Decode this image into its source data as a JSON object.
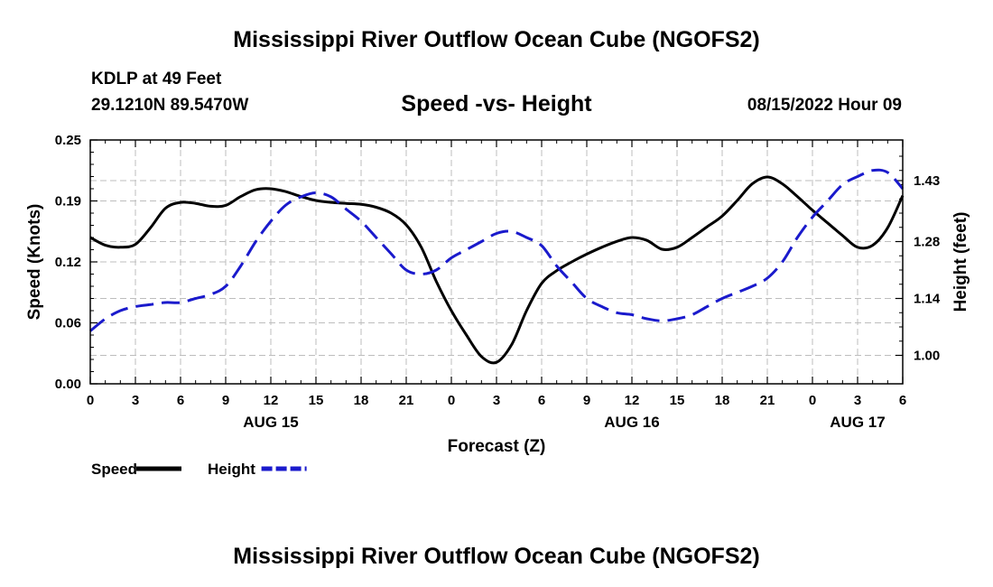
{
  "header": {
    "title": "Mississippi River Outflow Ocean Cube (NGOFS2)",
    "station": "KDLP at 49 Feet",
    "coordinates": "29.1210N  89.5470W",
    "subtitle": "Speed -vs- Height",
    "datetime": "08/15/2022 Hour 09"
  },
  "footer": {
    "title": "Mississippi River Outflow Ocean Cube (NGOFS2)"
  },
  "chart_data": {
    "type": "line",
    "title": "Speed -vs- Height",
    "xlabel": "Forecast (Z)",
    "ylabel": "Speed (Knots)",
    "y2label": "Height (feet)",
    "x_unit": "hours from 00Z Aug 15",
    "xlim": [
      0,
      54
    ],
    "ylim": [
      0,
      0.25
    ],
    "y2lim": [
      0.93,
      1.53
    ],
    "grid": true,
    "x_ticks": [
      {
        "x": 0,
        "label": "0"
      },
      {
        "x": 3,
        "label": "3"
      },
      {
        "x": 6,
        "label": "6"
      },
      {
        "x": 9,
        "label": "9"
      },
      {
        "x": 12,
        "label": "12"
      },
      {
        "x": 15,
        "label": "15"
      },
      {
        "x": 18,
        "label": "18"
      },
      {
        "x": 21,
        "label": "21"
      },
      {
        "x": 24,
        "label": "0"
      },
      {
        "x": 27,
        "label": "3"
      },
      {
        "x": 30,
        "label": "6"
      },
      {
        "x": 33,
        "label": "9"
      },
      {
        "x": 36,
        "label": "12"
      },
      {
        "x": 39,
        "label": "15"
      },
      {
        "x": 42,
        "label": "18"
      },
      {
        "x": 45,
        "label": "21"
      },
      {
        "x": 48,
        "label": "0"
      },
      {
        "x": 51,
        "label": "3"
      },
      {
        "x": 54,
        "label": "6"
      }
    ],
    "date_labels": [
      {
        "x": 12,
        "label": "AUG 15"
      },
      {
        "x": 36,
        "label": "AUG 16"
      },
      {
        "x": 51,
        "label": "AUG 17"
      }
    ],
    "y_ticks": [
      {
        "v": 0.0,
        "label": "0.00"
      },
      {
        "v": 0.0625,
        "label": "0.06"
      },
      {
        "v": 0.125,
        "label": "0.12"
      },
      {
        "v": 0.1875,
        "label": "0.19"
      },
      {
        "v": 0.25,
        "label": "0.25"
      }
    ],
    "y2_ticks": [
      {
        "v": 1.0,
        "label": "1.00"
      },
      {
        "v": 1.14,
        "label": "1.14"
      },
      {
        "v": 1.28,
        "label": "1.28"
      },
      {
        "v": 1.43,
        "label": "1.43"
      }
    ],
    "legend": [
      {
        "name": "Speed",
        "color": "#000000",
        "dash": false
      },
      {
        "name": "Height",
        "color": "#1a1acc",
        "dash": true
      }
    ],
    "series": [
      {
        "name": "Speed",
        "axis": "left",
        "color": "#000000",
        "dash": false,
        "points": [
          [
            0,
            0.15
          ],
          [
            1,
            0.142
          ],
          [
            2,
            0.14
          ],
          [
            3,
            0.143
          ],
          [
            4,
            0.16
          ],
          [
            5,
            0.18
          ],
          [
            6,
            0.186
          ],
          [
            7,
            0.185
          ],
          [
            8,
            0.182
          ],
          [
            9,
            0.183
          ],
          [
            10,
            0.192
          ],
          [
            11,
            0.199
          ],
          [
            12,
            0.2
          ],
          [
            13,
            0.197
          ],
          [
            14,
            0.192
          ],
          [
            15,
            0.188
          ],
          [
            16,
            0.186
          ],
          [
            17,
            0.185
          ],
          [
            18,
            0.184
          ],
          [
            19,
            0.181
          ],
          [
            20,
            0.175
          ],
          [
            21,
            0.163
          ],
          [
            22,
            0.14
          ],
          [
            23,
            0.105
          ],
          [
            24,
            0.075
          ],
          [
            25,
            0.05
          ],
          [
            26,
            0.028
          ],
          [
            27,
            0.022
          ],
          [
            28,
            0.04
          ],
          [
            29,
            0.075
          ],
          [
            30,
            0.103
          ],
          [
            31,
            0.116
          ],
          [
            32,
            0.125
          ],
          [
            33,
            0.133
          ],
          [
            34,
            0.14
          ],
          [
            35,
            0.146
          ],
          [
            36,
            0.15
          ],
          [
            37,
            0.147
          ],
          [
            38,
            0.138
          ],
          [
            39,
            0.14
          ],
          [
            40,
            0.15
          ],
          [
            41,
            0.161
          ],
          [
            42,
            0.172
          ],
          [
            43,
            0.188
          ],
          [
            44,
            0.205
          ],
          [
            45,
            0.212
          ],
          [
            46,
            0.205
          ],
          [
            47,
            0.192
          ],
          [
            48,
            0.178
          ],
          [
            49,
            0.165
          ],
          [
            50,
            0.152
          ],
          [
            51,
            0.14
          ],
          [
            52,
            0.142
          ],
          [
            53,
            0.16
          ],
          [
            54,
            0.193
          ]
        ]
      },
      {
        "name": "Height",
        "axis": "right",
        "color": "#1a1acc",
        "dash": true,
        "points": [
          [
            0,
            1.06
          ],
          [
            1,
            1.09
          ],
          [
            2,
            1.11
          ],
          [
            3,
            1.12
          ],
          [
            4,
            1.125
          ],
          [
            5,
            1.13
          ],
          [
            6,
            1.13
          ],
          [
            7,
            1.14
          ],
          [
            8,
            1.15
          ],
          [
            9,
            1.17
          ],
          [
            10,
            1.22
          ],
          [
            11,
            1.28
          ],
          [
            12,
            1.33
          ],
          [
            13,
            1.37
          ],
          [
            14,
            1.39
          ],
          [
            15,
            1.4
          ],
          [
            16,
            1.39
          ],
          [
            17,
            1.36
          ],
          [
            18,
            1.33
          ],
          [
            19,
            1.29
          ],
          [
            20,
            1.25
          ],
          [
            21,
            1.21
          ],
          [
            22,
            1.2
          ],
          [
            23,
            1.21
          ],
          [
            24,
            1.24
          ],
          [
            25,
            1.26
          ],
          [
            26,
            1.28
          ],
          [
            27,
            1.3
          ],
          [
            28,
            1.305
          ],
          [
            29,
            1.29
          ],
          [
            30,
            1.27
          ],
          [
            31,
            1.22
          ],
          [
            32,
            1.18
          ],
          [
            33,
            1.14
          ],
          [
            34,
            1.12
          ],
          [
            35,
            1.105
          ],
          [
            36,
            1.1
          ],
          [
            37,
            1.09
          ],
          [
            38,
            1.085
          ],
          [
            39,
            1.09
          ],
          [
            40,
            1.1
          ],
          [
            41,
            1.12
          ],
          [
            42,
            1.14
          ],
          [
            43,
            1.155
          ],
          [
            44,
            1.17
          ],
          [
            45,
            1.19
          ],
          [
            46,
            1.23
          ],
          [
            47,
            1.29
          ],
          [
            48,
            1.34
          ],
          [
            49,
            1.38
          ],
          [
            50,
            1.42
          ],
          [
            51,
            1.44
          ],
          [
            52,
            1.455
          ],
          [
            53,
            1.45
          ],
          [
            54,
            1.41
          ]
        ]
      }
    ]
  }
}
